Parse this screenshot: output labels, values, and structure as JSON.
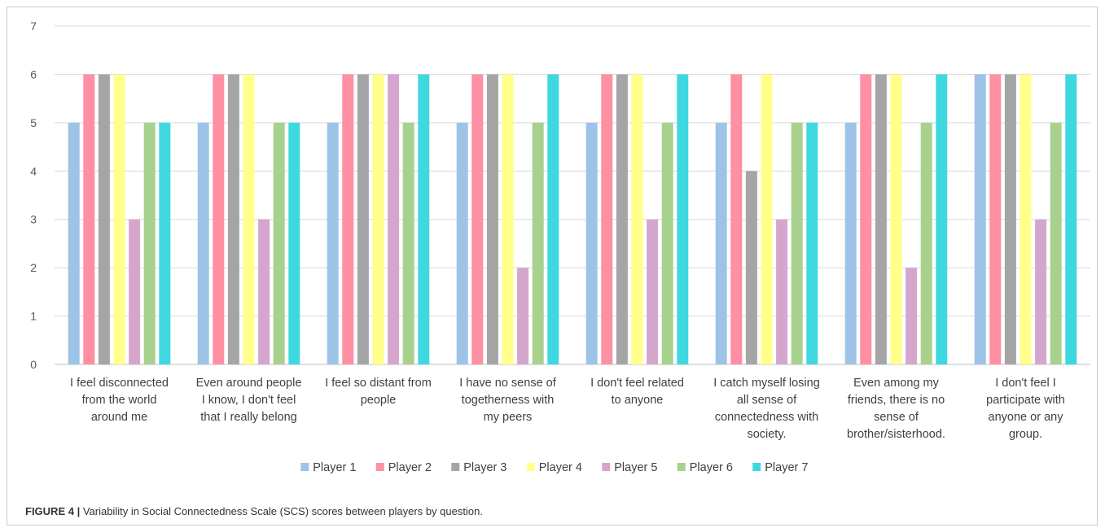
{
  "chart_data": {
    "type": "bar",
    "categories": [
      [
        "I feel disconnected",
        "from the world",
        "around me"
      ],
      [
        "Even around people",
        "I know, I don't feel",
        "that I really belong"
      ],
      [
        "I feel so distant from",
        "people"
      ],
      [
        "I have no sense of",
        "togetherness with",
        "my peers"
      ],
      [
        "I don't feel related",
        "to anyone"
      ],
      [
        "I catch myself losing",
        "all sense of",
        "connectedness with",
        "society."
      ],
      [
        "Even among my",
        "friends, there is no",
        "sense of",
        "brother/sisterhood."
      ],
      [
        "I don't feel I",
        "participate with",
        "anyone or any",
        "group."
      ]
    ],
    "series": [
      {
        "name": "Player 1",
        "color": "#9dc3e6",
        "values": [
          5,
          5,
          5,
          5,
          5,
          5,
          5,
          6
        ]
      },
      {
        "name": "Player 2",
        "color": "#ff8fa3",
        "values": [
          6,
          6,
          6,
          6,
          6,
          6,
          6,
          6
        ]
      },
      {
        "name": "Player 3",
        "color": "#a5a5a5",
        "values": [
          6,
          6,
          6,
          6,
          6,
          4,
          6,
          6
        ]
      },
      {
        "name": "Player 4",
        "color": "#ffff8a",
        "values": [
          6,
          6,
          6,
          6,
          6,
          6,
          6,
          6
        ]
      },
      {
        "name": "Player 5",
        "color": "#d5a6cd",
        "values": [
          3,
          3,
          6,
          2,
          3,
          3,
          2,
          3
        ]
      },
      {
        "name": "Player 6",
        "color": "#a9d18e",
        "values": [
          5,
          5,
          5,
          5,
          5,
          5,
          5,
          5
        ]
      },
      {
        "name": "Player 7",
        "color": "#3fd8e0",
        "values": [
          5,
          5,
          6,
          6,
          6,
          5,
          6,
          6
        ]
      }
    ],
    "ylim": [
      0,
      7
    ],
    "yticks": [
      0,
      1,
      2,
      3,
      4,
      5,
      6,
      7
    ],
    "grid": true,
    "legend": "bottom"
  },
  "caption": {
    "label": "FIGURE 4 |",
    "text": " Variability in Social Connectedness Scale (SCS) scores between players by question."
  }
}
